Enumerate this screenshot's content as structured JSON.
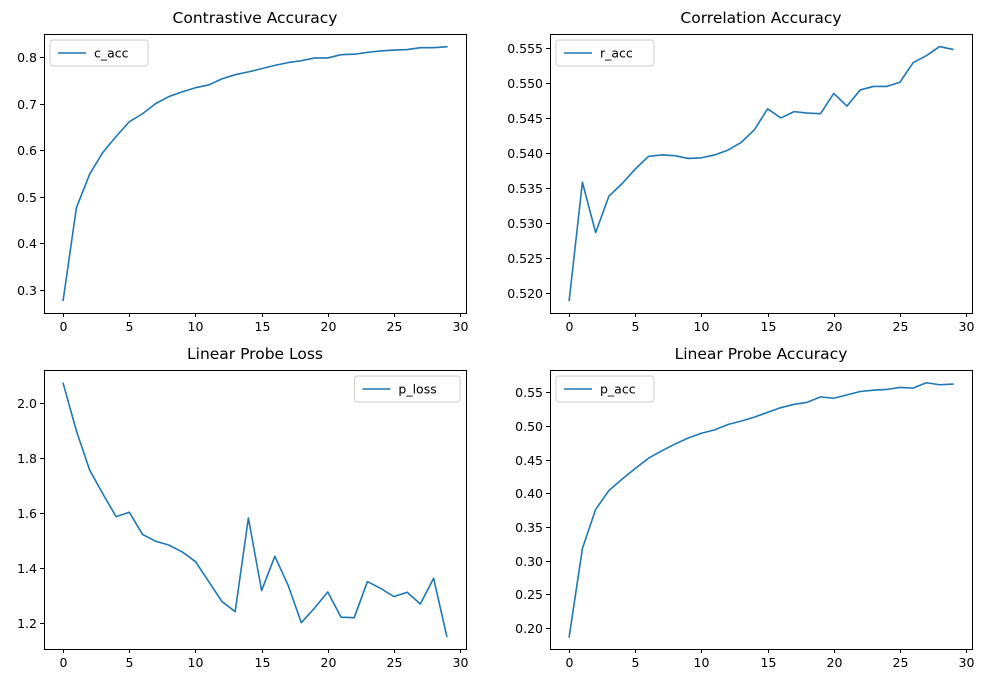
{
  "chart_data": [
    {
      "type": "line",
      "title": "Contrastive Accuracy",
      "xlabel": "",
      "ylabel": "",
      "xlim": [
        -1.45,
        30.45
      ],
      "ylim": [
        0.2505,
        0.8505
      ],
      "xticks": [
        0,
        5,
        10,
        15,
        20,
        25,
        30
      ],
      "yticks": [
        0.3,
        0.4,
        0.5,
        0.6,
        0.7,
        0.8
      ],
      "ytick_labels": [
        "0.3",
        "0.4",
        "0.5",
        "0.6",
        "0.7",
        "0.8"
      ],
      "legend_position": "upper-left",
      "grid": false,
      "color": "#1f77b4",
      "series": [
        {
          "name": "c_acc",
          "x": [
            0,
            1,
            2,
            3,
            4,
            5,
            6,
            7,
            8,
            9,
            10,
            11,
            12,
            13,
            14,
            15,
            16,
            17,
            18,
            19,
            20,
            21,
            22,
            23,
            24,
            25,
            26,
            27,
            28,
            29
          ],
          "y": [
            0.278,
            0.477,
            0.549,
            0.596,
            0.63,
            0.662,
            0.679,
            0.701,
            0.716,
            0.726,
            0.735,
            0.741,
            0.754,
            0.763,
            0.769,
            0.776,
            0.783,
            0.789,
            0.793,
            0.799,
            0.799,
            0.806,
            0.807,
            0.811,
            0.814,
            0.816,
            0.817,
            0.821,
            0.821,
            0.823
          ]
        }
      ]
    },
    {
      "type": "line",
      "title": "Correlation Accuracy",
      "xlabel": "",
      "ylabel": "",
      "xlim": [
        -1.45,
        30.45
      ],
      "ylim": [
        0.5171,
        0.557
      ],
      "xticks": [
        0,
        5,
        10,
        15,
        20,
        25,
        30
      ],
      "yticks": [
        0.52,
        0.525,
        0.53,
        0.535,
        0.54,
        0.545,
        0.55,
        0.555
      ],
      "ytick_labels": [
        "0.520",
        "0.525",
        "0.530",
        "0.535",
        "0.540",
        "0.545",
        "0.550",
        "0.555"
      ],
      "legend_position": "upper-left",
      "grid": false,
      "color": "#1f77b4",
      "series": [
        {
          "name": "r_acc",
          "x": [
            0,
            1,
            2,
            3,
            4,
            5,
            6,
            7,
            8,
            9,
            10,
            11,
            12,
            13,
            14,
            15,
            16,
            17,
            18,
            19,
            20,
            21,
            22,
            23,
            24,
            25,
            26,
            27,
            28,
            29
          ],
          "y": [
            0.5189,
            0.5358,
            0.5286,
            0.5338,
            0.5356,
            0.5377,
            0.5395,
            0.5397,
            0.5396,
            0.5392,
            0.5393,
            0.5397,
            0.5404,
            0.5415,
            0.5433,
            0.5463,
            0.545,
            0.5459,
            0.5457,
            0.5456,
            0.5485,
            0.5467,
            0.549,
            0.5495,
            0.5495,
            0.5501,
            0.5529,
            0.5539,
            0.5552,
            0.5548
          ]
        }
      ]
    },
    {
      "type": "line",
      "title": "Linear Probe Loss",
      "xlabel": "",
      "ylabel": "",
      "xlim": [
        -1.45,
        30.45
      ],
      "ylim": [
        1.1038,
        2.1222
      ],
      "xticks": [
        0,
        5,
        10,
        15,
        20,
        25,
        30
      ],
      "yticks": [
        1.2,
        1.4,
        1.6,
        1.8,
        2.0
      ],
      "ytick_labels": [
        "1.2",
        "1.4",
        "1.6",
        "1.8",
        "2.0"
      ],
      "legend_position": "upper-right",
      "grid": false,
      "color": "#1f77b4",
      "series": [
        {
          "name": "p_loss",
          "x": [
            0,
            1,
            2,
            3,
            4,
            5,
            6,
            7,
            8,
            9,
            10,
            11,
            12,
            13,
            14,
            15,
            16,
            17,
            18,
            19,
            20,
            21,
            22,
            23,
            24,
            25,
            26,
            27,
            28,
            29
          ],
          "y": [
            2.073,
            1.9,
            1.757,
            1.67,
            1.587,
            1.603,
            1.522,
            1.497,
            1.483,
            1.458,
            1.423,
            1.35,
            1.277,
            1.24,
            1.582,
            1.317,
            1.442,
            1.337,
            1.2,
            1.253,
            1.312,
            1.22,
            1.218,
            1.35,
            1.325,
            1.295,
            1.311,
            1.268,
            1.362,
            1.15
          ]
        }
      ]
    },
    {
      "type": "line",
      "title": "Linear Probe Accuracy",
      "xlabel": "",
      "ylabel": "",
      "xlim": [
        -1.45,
        30.45
      ],
      "ylim": [
        0.1689,
        0.5829
      ],
      "xticks": [
        0,
        5,
        10,
        15,
        20,
        25,
        30
      ],
      "yticks": [
        0.2,
        0.25,
        0.3,
        0.35,
        0.4,
        0.45,
        0.5,
        0.55
      ],
      "ytick_labels": [
        "0.20",
        "0.25",
        "0.30",
        "0.35",
        "0.40",
        "0.45",
        "0.50",
        "0.55"
      ],
      "legend_position": "upper-left",
      "grid": false,
      "color": "#1f77b4",
      "series": [
        {
          "name": "p_acc",
          "x": [
            0,
            1,
            2,
            3,
            4,
            5,
            6,
            7,
            8,
            9,
            10,
            11,
            12,
            13,
            14,
            15,
            16,
            17,
            18,
            19,
            20,
            21,
            22,
            23,
            24,
            25,
            26,
            27,
            28,
            29
          ],
          "y": [
            0.187,
            0.318,
            0.376,
            0.404,
            0.421,
            0.437,
            0.452,
            0.463,
            0.473,
            0.482,
            0.489,
            0.494,
            0.502,
            0.507,
            0.513,
            0.52,
            0.527,
            0.532,
            0.535,
            0.543,
            0.541,
            0.546,
            0.551,
            0.553,
            0.554,
            0.557,
            0.556,
            0.564,
            0.561,
            0.562
          ]
        }
      ]
    }
  ]
}
